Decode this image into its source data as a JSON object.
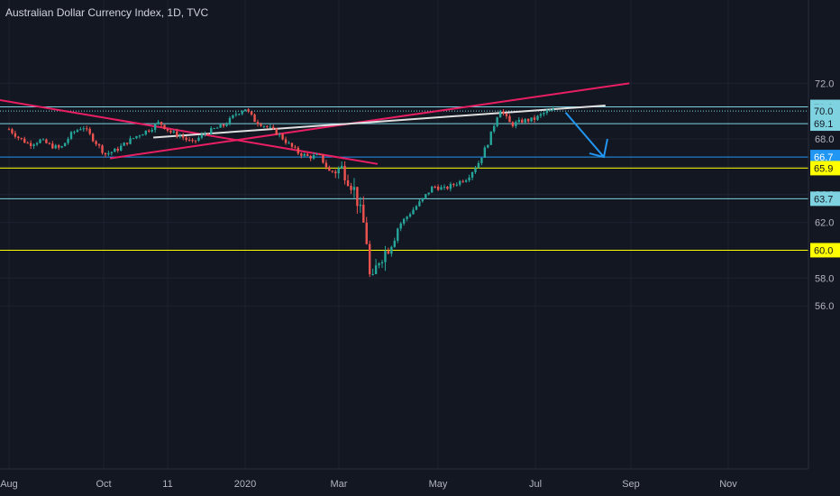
{
  "header": {
    "title": "Australian Dollar Currency Index, 1D, TVC"
  },
  "chart_data": {
    "type": "candlestick",
    "title": "Australian Dollar Currency Index, 1D, TVC",
    "y_ticks": [
      "72.0",
      "68.0",
      "64.0",
      "62.0",
      "58.0",
      "56.0"
    ],
    "ylim": [
      55.8,
      72.2
    ],
    "x_ticks": [
      "Aug",
      "Oct",
      "11",
      "2020",
      "Mar",
      "May",
      "Jul",
      "Sep",
      "Nov"
    ],
    "grid": true,
    "legend": "none",
    "horizontal_levels": [
      {
        "label": "70.3",
        "value": 70.3,
        "color": "#7fd3e0",
        "style": "solid"
      },
      {
        "label": "70.0",
        "value": 70.0,
        "color": "#7fd3e0",
        "style": "dotted"
      },
      {
        "label": "69.1",
        "value": 69.1,
        "color": "#7fd3e0",
        "style": "solid"
      },
      {
        "label": "66.7",
        "value": 66.7,
        "color": "#2196f3",
        "style": "solid"
      },
      {
        "label": "65.9",
        "value": 65.9,
        "color": "#ffff00",
        "style": "solid"
      },
      {
        "label": "63.7",
        "value": 63.7,
        "color": "#7fd3e0",
        "style": "solid"
      },
      {
        "label": "60.0",
        "value": 60.0,
        "color": "#ffff00",
        "style": "solid"
      }
    ],
    "series": [
      {
        "type": "ohlc_approx",
        "points": [
          [
            "Jul 31",
            68.7
          ],
          [
            "Aug 7",
            68.1
          ],
          [
            "Aug 14",
            67.6
          ],
          [
            "Aug 21",
            67.9
          ],
          [
            "Aug 28",
            67.5
          ],
          [
            "Sep 4",
            67.3
          ],
          [
            "Sep 11",
            68.4
          ],
          [
            "Sep 18",
            68.9
          ],
          [
            "Sep 25",
            67.9
          ],
          [
            "Oct 2",
            66.9
          ],
          [
            "Oct 9",
            67.2
          ],
          [
            "Oct 16",
            67.8
          ],
          [
            "Oct 23",
            68.3
          ],
          [
            "Oct 30",
            68.7
          ],
          [
            "Nov 6",
            69.2
          ],
          [
            "Nov 13",
            68.5
          ],
          [
            "Nov 20",
            68.2
          ],
          [
            "Nov 27",
            67.7
          ],
          [
            "Dec 4",
            68.3
          ],
          [
            "Dec 11",
            68.7
          ],
          [
            "Dec 18",
            69.0
          ],
          [
            "Dec 25",
            69.8
          ],
          [
            "Dec 31",
            70.2
          ],
          [
            "Jan 7",
            69.3
          ],
          [
            "Jan 14",
            68.9
          ],
          [
            "Jan 21",
            68.4
          ],
          [
            "Jan 28",
            67.6
          ],
          [
            "Feb 4",
            67.0
          ],
          [
            "Feb 11",
            66.7
          ],
          [
            "Feb 18",
            66.8
          ],
          [
            "Feb 25",
            65.6
          ],
          [
            "Mar 3",
            65.9
          ],
          [
            "Mar 10",
            64.4
          ],
          [
            "Mar 17",
            61.3
          ],
          [
            "Mar 20",
            57.2
          ],
          [
            "Mar 24",
            59.2
          ],
          [
            "Mar 31",
            60.3
          ],
          [
            "Apr 7",
            61.8
          ],
          [
            "Apr 14",
            62.7
          ],
          [
            "Apr 21",
            63.6
          ],
          [
            "Apr 28",
            64.6
          ],
          [
            "May 5",
            64.4
          ],
          [
            "May 12",
            64.8
          ],
          [
            "May 19",
            65.2
          ],
          [
            "May 26",
            66.3
          ],
          [
            "Jun 2",
            67.8
          ],
          [
            "Jun 9",
            70.2
          ],
          [
            "Jun 16",
            69.0
          ],
          [
            "Jun 23",
            69.3
          ],
          [
            "Jun 30",
            69.4
          ],
          [
            "Jul 7",
            69.9
          ],
          [
            "Jul 14",
            70.1
          ]
        ]
      }
    ],
    "trendlines": [
      {
        "from": [
          "Jul 25",
          70.8
        ],
        "to": [
          "Mar 24",
          66.2
        ],
        "color": "#e91e63"
      },
      {
        "from": [
          "Oct 5",
          66.6
        ],
        "to": [
          "Aug 30",
          72.0
        ],
        "color": "#e91e63"
      },
      {
        "from": [
          "Jun 20",
          68.1
        ],
        "to": [
          "Aug 15",
          70.4
        ],
        "color": "#e0e0e0"
      }
    ],
    "arrow": {
      "from": [
        "Jul 20",
        69.9
      ],
      "to": [
        "Aug 14",
        66.7
      ],
      "color": "#2196f3"
    }
  }
}
